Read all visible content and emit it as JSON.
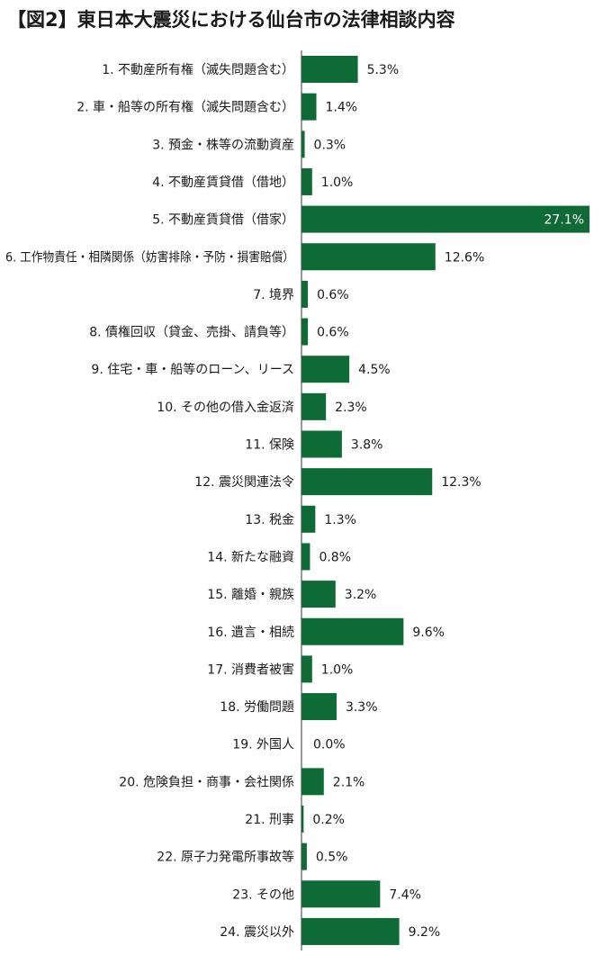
{
  "chart_data": {
    "type": "bar",
    "orientation": "horizontal",
    "title": "【図2】東日本大震災における仙台市の法律相談内容",
    "bar_color": "#0e6b36",
    "categories": [
      "1. 不動産所有権（滅失問題含む）",
      "2. 車・船等の所有権（滅失問題含む）",
      "3. 預金・株等の流動資産",
      "4. 不動産賃貸借（借地）",
      "5. 不動産賃貸借（借家）",
      "6. 工作物責任・相隣関係（妨害排除・予防・損害賠償）",
      "7. 境界",
      "8. 債権回収（貸金、売掛、請負等）",
      "9. 住宅・車・船等のローン、リース",
      "10. その他の借入金返済",
      "11. 保険",
      "12. 震災関連法令",
      "13. 税金",
      "14. 新たな融資",
      "15. 離婚・親族",
      "16. 遺言・相続",
      "17. 消費者被害",
      "18. 労働問題",
      "19. 外国人",
      "20. 危険負担・商事・会社関係",
      "21. 刑事",
      "22. 原子力発電所事故等",
      "23. その他",
      "24. 震災以外"
    ],
    "values": [
      5.3,
      1.4,
      0.3,
      1.0,
      27.1,
      12.6,
      0.6,
      0.6,
      4.5,
      2.3,
      3.8,
      12.3,
      1.3,
      0.8,
      3.2,
      9.6,
      1.0,
      3.3,
      0.0,
      2.1,
      0.2,
      0.5,
      7.4,
      9.2
    ],
    "value_labels": [
      "5.3%",
      "1.4%",
      "0.3%",
      "1.0%",
      "27.1%",
      "12.6%",
      "0.6%",
      "0.6%",
      "4.5%",
      "2.3%",
      "3.8%",
      "12.3%",
      "1.3%",
      "0.8%",
      "3.2%",
      "9.6%",
      "1.0%",
      "3.3%",
      "0.0%",
      "2.1%",
      "0.2%",
      "0.5%",
      "7.4%",
      "9.2%"
    ],
    "unit": "%",
    "xlim": [
      0,
      27.1
    ],
    "grid": false,
    "legend": "none"
  }
}
